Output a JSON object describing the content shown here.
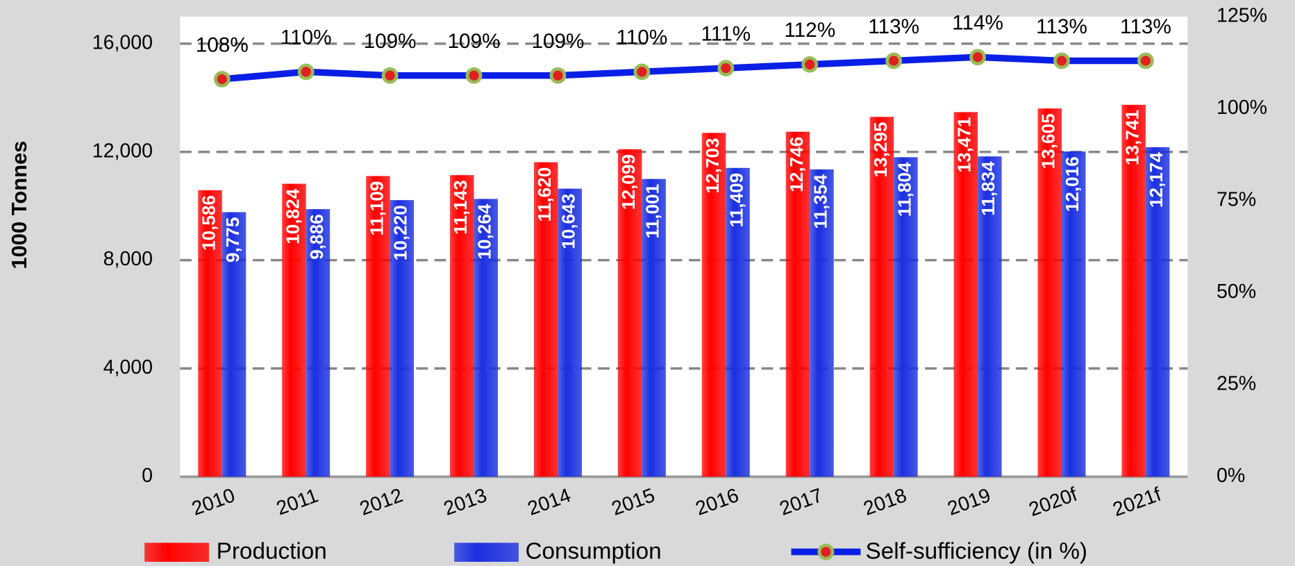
{
  "chart_data": {
    "type": "bar",
    "y_label": "1000 Tonnes",
    "categories": [
      "2010",
      "2011",
      "2012",
      "2013",
      "2014",
      "2015",
      "2016",
      "2017",
      "2018",
      "2019",
      "2020f",
      "2021f"
    ],
    "series": [
      {
        "name": "Production",
        "color": "#ff0000",
        "values": [
          10586,
          10824,
          11109,
          11143,
          11620,
          12099,
          12703,
          12746,
          13295,
          13471,
          13605,
          13741
        ],
        "value_labels": [
          "10,586",
          "10,824",
          "11,109",
          "11,143",
          "11,620",
          "12,099",
          "12,703",
          "12,746",
          "13,295",
          "13,471",
          "13,605",
          "13,741"
        ]
      },
      {
        "name": "Consumption",
        "color": "#1a2fe0",
        "values": [
          9775,
          9886,
          10220,
          10264,
          10643,
          11001,
          11409,
          11354,
          11804,
          11834,
          12016,
          12174
        ],
        "value_labels": [
          "9,775",
          "9,886",
          "10,220",
          "10,264",
          "10,643",
          "11,001",
          "11,409",
          "11,354",
          "11,804",
          "11,834",
          "12,016",
          "12,174"
        ]
      },
      {
        "name": "Self-sufficiency (in %)",
        "type": "line",
        "axis": "y2",
        "color": "#0a1fe6",
        "marker_color": "#e02020",
        "values": [
          108,
          110,
          109,
          109,
          109,
          110,
          111,
          112,
          113,
          114,
          113,
          113
        ],
        "value_labels": [
          "108%",
          "110%",
          "109%",
          "109%",
          "109%",
          "110%",
          "111%",
          "112%",
          "113%",
          "114%",
          "113%",
          "113%"
        ]
      }
    ],
    "ylim": [
      0,
      17000
    ],
    "yticks": [
      0,
      {
        "value": 4000,
        "label": "4,000"
      },
      {
        "value": 8000,
        "label": "8,000"
      },
      {
        "value": 12000,
        "label": "12,000"
      },
      {
        "value": 16000,
        "label": "16,000"
      }
    ],
    "y2lim": [
      0,
      125
    ],
    "y2ticks": [
      {
        "value": 0,
        "label": "0%"
      },
      {
        "value": 25,
        "label": "25%"
      },
      {
        "value": 50,
        "label": "50%"
      },
      {
        "value": 75,
        "label": "75%"
      },
      {
        "value": 100,
        "label": "100%"
      },
      {
        "value": 125,
        "label": "125%"
      }
    ],
    "grid": true
  }
}
